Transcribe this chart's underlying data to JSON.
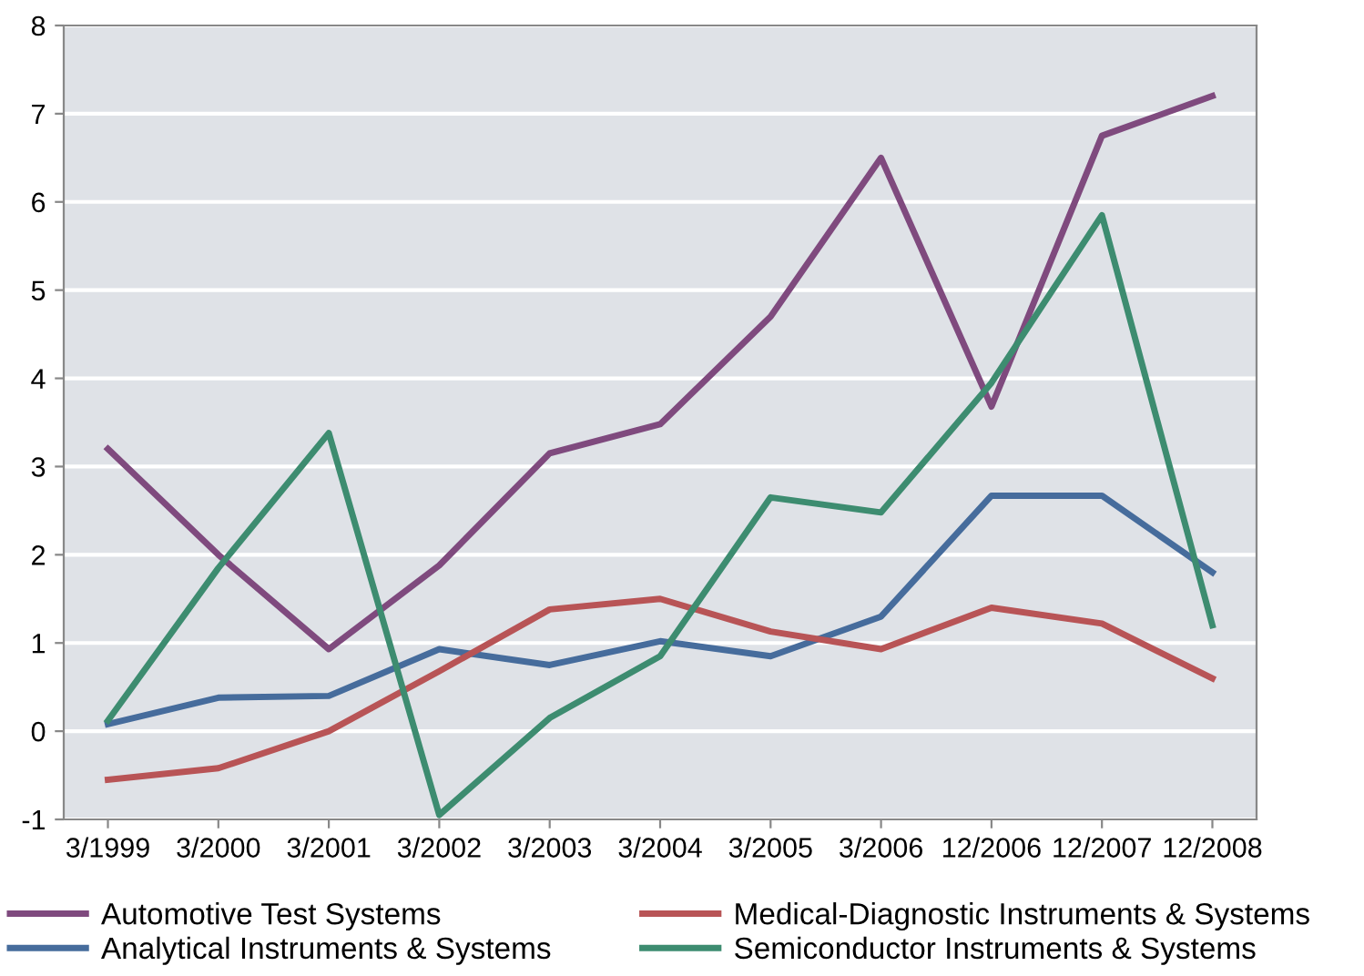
{
  "chart_data": {
    "type": "line",
    "categories": [
      "3/1999",
      "3/2000",
      "3/2001",
      "3/2002",
      "3/2003",
      "3/2004",
      "3/2005",
      "3/2006",
      "12/2006",
      "12/2007",
      "12/2008"
    ],
    "series": [
      {
        "name": "Automotive Test Systems",
        "color": "#7f4a7e",
        "values": [
          3.2,
          2.0,
          0.93,
          1.88,
          3.15,
          3.48,
          4.7,
          6.5,
          3.68,
          6.75,
          7.2
        ]
      },
      {
        "name": "Analytical Instruments & Systems",
        "color": "#466c9c",
        "values": [
          0.08,
          0.38,
          0.4,
          0.93,
          0.75,
          1.02,
          0.85,
          1.3,
          2.67,
          2.67,
          1.8
        ]
      },
      {
        "name": "Medical-Diagnostic Instruments & Systems",
        "color": "#b85456",
        "values": [
          -0.55,
          -0.42,
          0.0,
          0.68,
          1.38,
          1.5,
          1.13,
          0.93,
          1.4,
          1.22,
          0.6
        ]
      },
      {
        "name": "Semiconductor Instruments & Systems",
        "color": "#3d8c70",
        "values": [
          0.12,
          1.85,
          3.38,
          -0.95,
          0.15,
          0.85,
          2.65,
          2.48,
          3.95,
          5.85,
          1.2
        ]
      }
    ],
    "ylim": [
      -1,
      8
    ],
    "yticks": [
      -1,
      0,
      1,
      2,
      3,
      4,
      5,
      6,
      7,
      8
    ],
    "grid": "y",
    "legend": "bottom",
    "marker": "none",
    "line_style": "solid"
  }
}
